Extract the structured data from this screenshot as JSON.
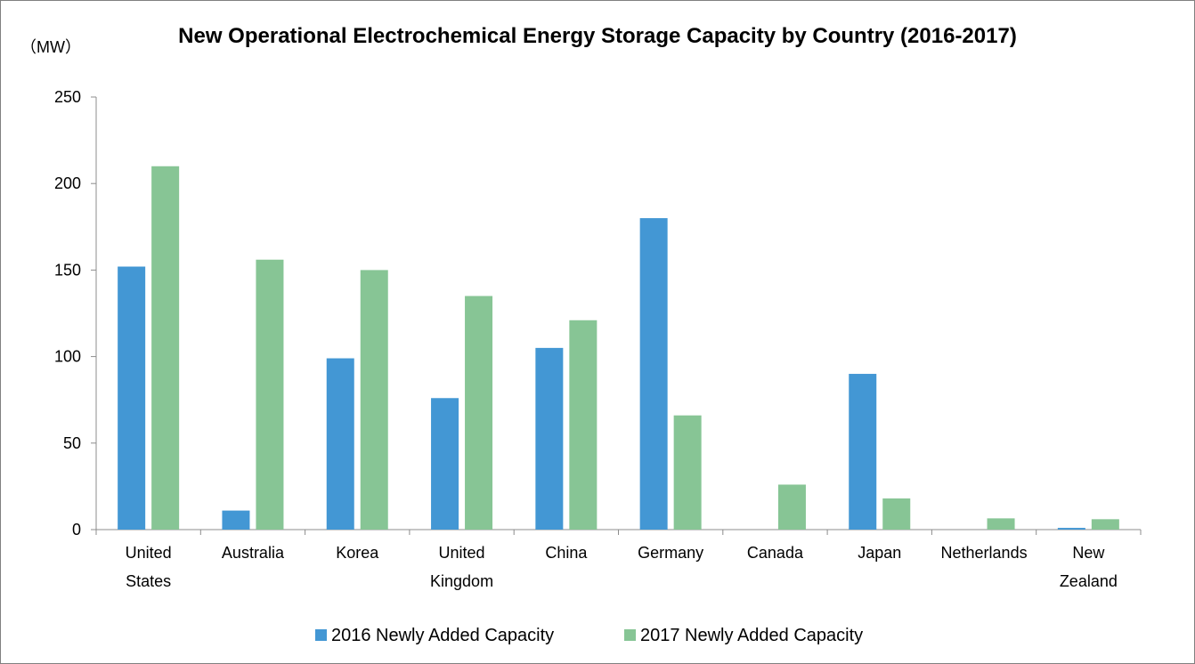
{
  "chart_data": {
    "type": "bar",
    "title": "New Operational Electrochemical Energy Storage Capacity by Country (2016-2017)",
    "unit_label": "（MW）",
    "categories": [
      [
        "United",
        "States"
      ],
      [
        "Australia"
      ],
      [
        "Korea"
      ],
      [
        "United",
        "Kingdom"
      ],
      [
        "China"
      ],
      [
        "Germany"
      ],
      [
        "Canada"
      ],
      [
        "Japan"
      ],
      [
        "Netherlands"
      ],
      [
        "New",
        "Zealand"
      ]
    ],
    "series": [
      {
        "name": "2016 Newly Added Capacity",
        "color": "#4397d4",
        "values": [
          152,
          11,
          99,
          76,
          105,
          180,
          0,
          90,
          0,
          1
        ]
      },
      {
        "name": "2017 Newly Added Capacity",
        "color": "#87c595",
        "values": [
          210,
          156,
          150,
          135,
          121,
          66,
          26,
          18,
          6.5,
          6
        ]
      }
    ],
    "yticks": [
      0,
      50,
      100,
      150,
      200,
      250
    ],
    "ylim": [
      0,
      250
    ],
    "grid": false,
    "legend_position": "bottom"
  }
}
